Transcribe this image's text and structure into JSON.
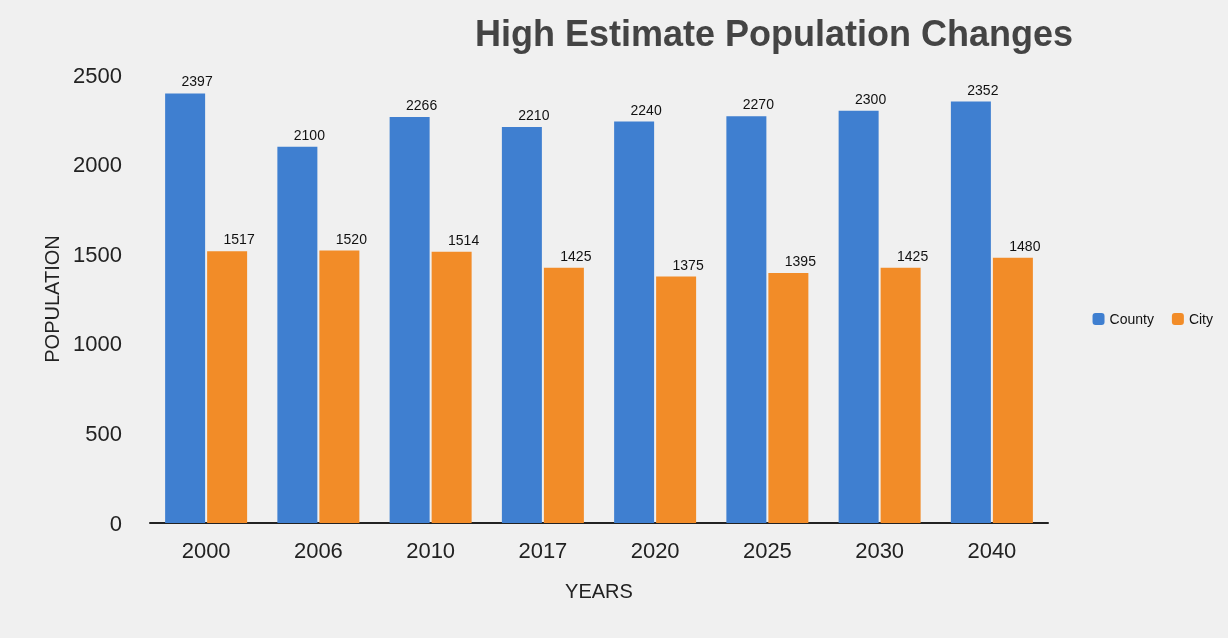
{
  "chart_data": {
    "type": "bar",
    "title": "High Estimate Population Changes",
    "xlabel": "YEARS",
    "ylabel": "POPULATION",
    "categories": [
      "2000",
      "2006",
      "2010",
      "2017",
      "2020",
      "2025",
      "2030",
      "2040"
    ],
    "series": [
      {
        "name": "County",
        "color": "#3f7fd0",
        "values": [
          2397,
          2100,
          2266,
          2210,
          2240,
          2270,
          2300,
          2352
        ]
      },
      {
        "name": "City",
        "color": "#f28c28",
        "values": [
          1517,
          1520,
          1514,
          1425,
          1375,
          1395,
          1425,
          1480
        ]
      }
    ],
    "ylim": [
      0,
      2500
    ],
    "yticks": [
      0,
      500,
      1000,
      1500,
      2000,
      2500
    ],
    "grid": false,
    "legend": "right",
    "data_labels": true
  }
}
